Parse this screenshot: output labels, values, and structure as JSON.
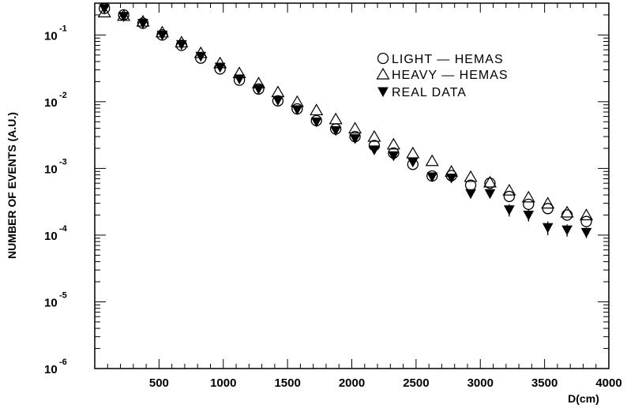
{
  "chart_data": {
    "type": "scatter",
    "xlabel": "D(cm)",
    "ylabel": "NUMBER OF EVENTS (A.U.)",
    "x_ticks": [
      500,
      1000,
      1500,
      2000,
      2500,
      3000,
      3500,
      4000
    ],
    "xlim": [
      0,
      4000
    ],
    "y_log": true,
    "ylim": [
      1e-06,
      0.3
    ],
    "y_tick_labels": [
      {
        "base": "10",
        "exp": "-1",
        "value": 0.1
      },
      {
        "base": "10",
        "exp": "-2",
        "value": 0.01
      },
      {
        "base": "10",
        "exp": "-3",
        "value": 0.001
      },
      {
        "base": "10",
        "exp": "-4",
        "value": 0.0001
      },
      {
        "base": "10",
        "exp": "-5",
        "value": 1e-05
      },
      {
        "base": "10",
        "exp": "-6",
        "value": 1e-06
      }
    ],
    "legend_placement": "top-right",
    "x": [
      75,
      225,
      375,
      525,
      675,
      825,
      975,
      1125,
      1275,
      1425,
      1575,
      1725,
      1875,
      2025,
      2175,
      2325,
      2475,
      2625,
      2775,
      2925,
      3075,
      3225,
      3375,
      3525,
      3675,
      3825
    ],
    "series": [
      {
        "name": "LIGHT  — HEMAS",
        "marker": "circle-open",
        "values": [
          0.25,
          0.2,
          0.15,
          0.1,
          0.07,
          0.045,
          0.031,
          0.021,
          0.0155,
          0.0103,
          0.0078,
          0.0052,
          0.0039,
          0.003,
          0.0022,
          0.0017,
          0.00115,
          0.00077,
          0.00078,
          0.00056,
          0.0006,
          0.00038,
          0.00029,
          0.00025,
          0.0002,
          0.00016
        ]
      },
      {
        "name": "HEAVY — HEMAS",
        "marker": "triangle-open",
        "values": [
          0.22,
          0.195,
          0.16,
          0.11,
          0.078,
          0.054,
          0.038,
          0.027,
          0.019,
          0.014,
          0.01,
          0.0075,
          0.0055,
          0.004,
          0.003,
          0.0023,
          0.0017,
          0.0013,
          0.0009,
          0.00075,
          0.00062,
          0.00047,
          0.00037,
          0.0003,
          0.00022,
          0.0002
        ]
      },
      {
        "name": "REAL   DATA",
        "marker": "triangle-down-filled",
        "values": [
          0.25,
          0.19,
          0.15,
          0.1,
          0.072,
          0.048,
          0.033,
          0.022,
          0.0155,
          0.0105,
          0.0076,
          0.005,
          0.0037,
          0.0028,
          0.0019,
          0.00155,
          0.00125,
          0.00075,
          0.00072,
          0.00042,
          0.00042,
          0.00024,
          0.0002,
          0.00013,
          0.00012,
          0.00011
        ],
        "error_low": [
          0,
          0,
          0,
          0,
          0,
          0,
          0,
          0,
          0,
          0,
          0,
          0,
          0,
          0,
          0,
          0,
          0,
          0,
          0,
          0,
          0,
          0.00019,
          0.00016,
          0.0001,
          9.5e-05,
          9e-05
        ],
        "error_high": [
          0,
          0,
          0,
          0,
          0,
          0,
          0,
          0,
          0,
          0,
          0,
          0,
          0,
          0,
          0,
          0,
          0,
          0,
          0,
          0,
          0,
          0.00029,
          0.00024,
          0.00016,
          0.000145,
          0.00013
        ]
      }
    ]
  }
}
